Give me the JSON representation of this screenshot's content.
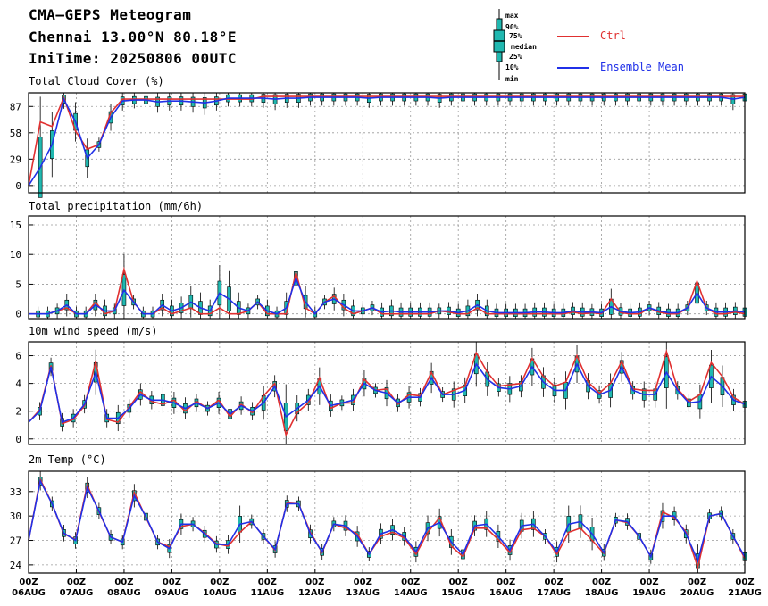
{
  "header": {
    "title": "CMA—GEPS Meteogram",
    "location": "Chennai 13.00°N 80.18°E",
    "init_time": "IniTime: 20250806 00UTC"
  },
  "legend": {
    "box_labels": [
      "max",
      "90%",
      "75%",
      "median",
      "25%",
      "10%",
      "min"
    ],
    "ctrl_label": "Ctrl",
    "mean_label": "Ensemble Mean",
    "ctrl_color": "#e03030",
    "mean_color": "#2030e8",
    "box_color": "#20b8b0"
  },
  "chart_data": [
    {
      "type": "line",
      "title": "Total Cloud Cover (%)",
      "ylim": [
        -8,
        102
      ],
      "yticks": [
        0,
        29,
        58,
        87
      ],
      "xticks": [
        "00Z\n06AUG",
        "00Z\n07AUG",
        "00Z\n08AUG",
        "00Z\n09AUG",
        "00Z\n10AUG",
        "00Z\n11AUG",
        "00Z\n12AUG",
        "00Z\n13AUG",
        "00Z\n14AUG",
        "00Z\n15AUG",
        "00Z\n16AUG",
        "00Z\n17AUG",
        "00Z\n18AUG",
        "00Z\n19AUG",
        "00Z\n20AUG",
        "00Z\n21AUG"
      ],
      "step_hours": 6,
      "series": [
        {
          "name": "Ctrl",
          "values": [
            0,
            70,
            65,
            97,
            60,
            40,
            45,
            80,
            95,
            95,
            95,
            95,
            95,
            95,
            95,
            95,
            95,
            95,
            95,
            95,
            98,
            98,
            98,
            98,
            98,
            98,
            98,
            98,
            98,
            98,
            98,
            98,
            98,
            98,
            98,
            98,
            98,
            98,
            98,
            98,
            98,
            98,
            98,
            98,
            98,
            98,
            98,
            98,
            98,
            98,
            98,
            98,
            98,
            98,
            98,
            98,
            98,
            98,
            98,
            98,
            98,
            98
          ]
        },
        {
          "name": "Ensemble Mean",
          "values": [
            0,
            20,
            45,
            95,
            70,
            30,
            45,
            75,
            93,
            94,
            94,
            92,
            93,
            93,
            92,
            91,
            93,
            96,
            96,
            96,
            96,
            95,
            96,
            96,
            97,
            97,
            97,
            97,
            97,
            96,
            97,
            97,
            97,
            97,
            97,
            96,
            97,
            97,
            97,
            97,
            97,
            97,
            97,
            97,
            97,
            97,
            97,
            97,
            97,
            97,
            97,
            97,
            97,
            97,
            97,
            97,
            97,
            97,
            97,
            97,
            95,
            97
          ]
        }
      ]
    },
    {
      "type": "line",
      "title": "Total precipitation (mm/6h)",
      "ylim": [
        -0.8,
        16.5
      ],
      "yticks": [
        0,
        5,
        10,
        15
      ],
      "series": [
        {
          "name": "Ctrl",
          "values": [
            0,
            0,
            0,
            0.5,
            1,
            0,
            0,
            2,
            0,
            0.5,
            7.5,
            2,
            0,
            0,
            1,
            0,
            0.5,
            1,
            0,
            0,
            1,
            0,
            0,
            0.5,
            2,
            0,
            0,
            0,
            7,
            1,
            0,
            2,
            3,
            1,
            0,
            0.5,
            1,
            0,
            0,
            0,
            0,
            0,
            0,
            0.5,
            0.3,
            0,
            0,
            1,
            0,
            0,
            0,
            0,
            0,
            0,
            0,
            0,
            0,
            0.3,
            0,
            0.2,
            0,
            2.5,
            0.2,
            0,
            0,
            1,
            0.3,
            0,
            0,
            1,
            5.5,
            1,
            0,
            0,
            0.3,
            0
          ]
        },
        {
          "name": "Ensemble Mean",
          "values": [
            0,
            0,
            0,
            0.5,
            1.5,
            0,
            0,
            1.5,
            0.5,
            0.5,
            4,
            2,
            0,
            0,
            1.5,
            0.5,
            1,
            2,
            1,
            0.5,
            3.5,
            2.5,
            1,
            0.5,
            2,
            0.5,
            0,
            1,
            6,
            2,
            0,
            2,
            2.5,
            1.5,
            0.5,
            0.5,
            1,
            0.3,
            0.5,
            0.3,
            0.3,
            0.3,
            0.3,
            0.5,
            0.5,
            0.2,
            0.5,
            1.5,
            0.5,
            0.2,
            0.2,
            0.2,
            0.2,
            0.3,
            0.3,
            0.2,
            0.2,
            0.5,
            0.3,
            0.3,
            0.2,
            1.2,
            0.4,
            0.2,
            0.3,
            1,
            0.5,
            0.2,
            0.2,
            1,
            3.5,
            1,
            0.3,
            0.3,
            0.5,
            0.3
          ]
        }
      ]
    },
    {
      "type": "line",
      "title": "10m wind speed (m/s)",
      "ylim": [
        -0.4,
        7.0
      ],
      "yticks": [
        0,
        2,
        4,
        6
      ],
      "series": [
        {
          "name": "Ctrl",
          "values": [
            1.2,
            2.1,
            5.3,
            1.1,
            1.4,
            2.4,
            5.6,
            1.4,
            1.2,
            2.3,
            3.4,
            2.7,
            2.5,
            2.8,
            2.0,
            2.7,
            2.2,
            2.8,
            1.6,
            2.5,
            1.9,
            3.1,
            4.0,
            0.3,
            1.9,
            2.6,
            4.4,
            2.2,
            2.6,
            2.6,
            4.3,
            3.5,
            3.6,
            2.5,
            3.2,
            3.1,
            4.8,
            3.2,
            3.5,
            3.8,
            6.2,
            4.8,
            3.8,
            3.9,
            4.0,
            5.8,
            4.5,
            3.8,
            4.1,
            6.0,
            4.1,
            3.3,
            4.0,
            5.6,
            3.6,
            3.5,
            3.5,
            6.3,
            3.6,
            2.7,
            3.2,
            5.5,
            4.5,
            3.0,
            2.5
          ]
        },
        {
          "name": "Ensemble Mean",
          "values": [
            1.2,
            2.0,
            5.2,
            1.2,
            1.5,
            2.5,
            4.8,
            1.5,
            1.5,
            2.2,
            3.2,
            2.8,
            2.8,
            2.6,
            2.2,
            2.6,
            2.2,
            2.6,
            1.8,
            2.4,
            2.0,
            2.6,
            3.8,
            1.6,
            2.2,
            2.8,
            3.8,
            2.4,
            2.6,
            2.8,
            4.0,
            3.5,
            3.3,
            2.6,
            3.0,
            3.0,
            4.4,
            3.2,
            3.2,
            3.5,
            5.4,
            4.3,
            3.7,
            3.6,
            3.8,
            5.2,
            4.1,
            3.5,
            3.5,
            5.4,
            3.8,
            3.2,
            3.5,
            5.2,
            3.5,
            3.2,
            3.2,
            4.8,
            3.5,
            2.6,
            2.7,
            4.5,
            3.8,
            2.8,
            2.5
          ]
        }
      ]
    },
    {
      "type": "line",
      "title": "2m Temp (°C)",
      "ylim": [
        23,
        35.5
      ],
      "yticks": [
        24,
        27,
        30,
        33
      ],
      "series": [
        {
          "name": "Ctrl",
          "values": [
            27.0,
            34.5,
            31.5,
            27.8,
            27.1,
            33.8,
            30.5,
            27.4,
            26.8,
            32.9,
            29.8,
            26.8,
            26.2,
            28.7,
            29.0,
            27.9,
            26.6,
            26.3,
            28.0,
            29.3,
            27.5,
            25.8,
            31.6,
            31.5,
            28.0,
            25.5,
            29.0,
            28.5,
            27.8,
            25.3,
            27.5,
            28.0,
            27.3,
            25.3,
            28.0,
            29.8,
            26.3,
            25.0,
            28.5,
            28.5,
            27.1,
            25.5,
            28.3,
            28.5,
            27.5,
            25.3,
            28.0,
            28.5,
            27.0,
            25.4,
            29.5,
            29.2,
            27.5,
            25.0,
            30.5,
            29.8,
            28.0,
            23.7,
            30.0,
            30.3,
            27.5,
            24.8
          ]
        },
        {
          "name": "Ensemble Mean",
          "values": [
            27.0,
            34.3,
            31.5,
            27.9,
            27.0,
            33.5,
            30.6,
            27.4,
            26.8,
            32.5,
            29.9,
            26.8,
            26.0,
            29.0,
            29.0,
            27.8,
            26.5,
            26.5,
            29.0,
            29.3,
            27.5,
            25.9,
            31.5,
            31.5,
            27.8,
            25.6,
            29.0,
            28.8,
            27.5,
            25.3,
            27.8,
            28.3,
            27.5,
            25.6,
            28.5,
            29.2,
            26.8,
            25.3,
            28.8,
            29.0,
            27.5,
            25.8,
            28.8,
            29.0,
            27.5,
            25.6,
            29.0,
            29.3,
            27.8,
            25.5,
            29.5,
            29.3,
            27.5,
            25.0,
            30.0,
            30.0,
            27.8,
            24.5,
            30.0,
            30.3,
            27.5,
            25.0
          ]
        }
      ]
    }
  ]
}
